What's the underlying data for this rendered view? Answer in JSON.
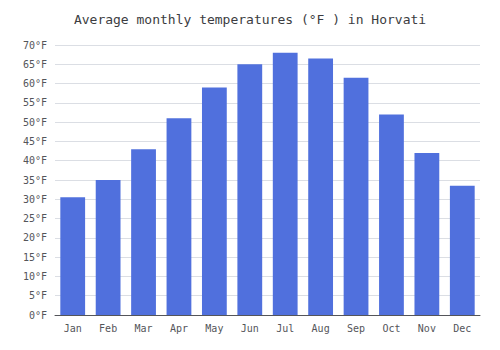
{
  "chart_data": {
    "type": "bar",
    "title": "Average monthly temperatures (°F ) in Horvati",
    "categories": [
      "Jan",
      "Feb",
      "Mar",
      "Apr",
      "May",
      "Jun",
      "Jul",
      "Aug",
      "Sep",
      "Oct",
      "Nov",
      "Dec"
    ],
    "values": [
      30.5,
      35.0,
      43.0,
      51.0,
      59.0,
      65.0,
      68.0,
      66.5,
      61.5,
      52.0,
      42.0,
      33.5
    ],
    "ylim": [
      0,
      70
    ],
    "yticks": [
      {
        "value": 0,
        "label": "0°F"
      },
      {
        "value": 5,
        "label": "5°F"
      },
      {
        "value": 10,
        "label": "10°F"
      },
      {
        "value": 15,
        "label": "15°F"
      },
      {
        "value": 20,
        "label": "20°F"
      },
      {
        "value": 25,
        "label": "25°F"
      },
      {
        "value": 30,
        "label": "30°F"
      },
      {
        "value": 35,
        "label": "35°F"
      },
      {
        "value": 40,
        "label": "40°F"
      },
      {
        "value": 45,
        "label": "45°F"
      },
      {
        "value": 50,
        "label": "50°F"
      },
      {
        "value": 55,
        "label": "55°F"
      },
      {
        "value": 60,
        "label": "60°F"
      },
      {
        "value": 65,
        "label": "65°F"
      },
      {
        "value": 70,
        "label": "70°F"
      }
    ],
    "grid": true
  }
}
